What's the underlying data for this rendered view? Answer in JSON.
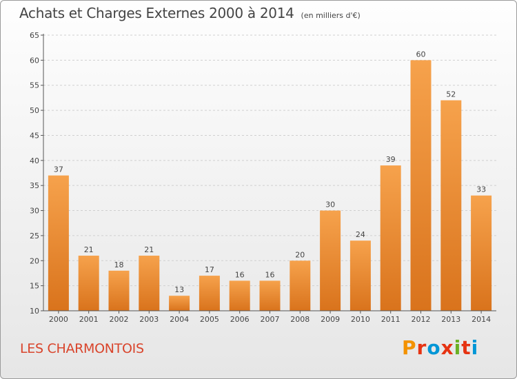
{
  "header": {
    "title": "Achats et Charges Externes 2000 à 2014",
    "unit": "(en milliers d'€)"
  },
  "footer": {
    "place": "LES CHARMONTOIS",
    "logo_text": "Proxiti",
    "logo_colors": [
      "#f39200",
      "#e63312",
      "#0096d6",
      "#e63312",
      "#6ab023",
      "#e63312",
      "#0096d6"
    ]
  },
  "colors": {
    "bar_top": "#f6a24c",
    "bar_bottom": "#d9731c",
    "axis": "#555555",
    "grid": "#cfcfcf",
    "place_text": "#d9442b"
  },
  "chart_data": {
    "type": "bar",
    "categories": [
      "2000",
      "2001",
      "2002",
      "2003",
      "2004",
      "2005",
      "2006",
      "2007",
      "2008",
      "2009",
      "2010",
      "2011",
      "2012",
      "2013",
      "2014"
    ],
    "values": [
      37,
      21,
      18,
      21,
      13,
      17,
      16,
      16,
      20,
      30,
      24,
      39,
      60,
      52,
      33
    ],
    "ylim": [
      10,
      65
    ],
    "yticks": [
      10,
      15,
      20,
      25,
      30,
      35,
      40,
      45,
      50,
      55,
      60,
      65
    ],
    "grid": true,
    "legend": "none"
  }
}
